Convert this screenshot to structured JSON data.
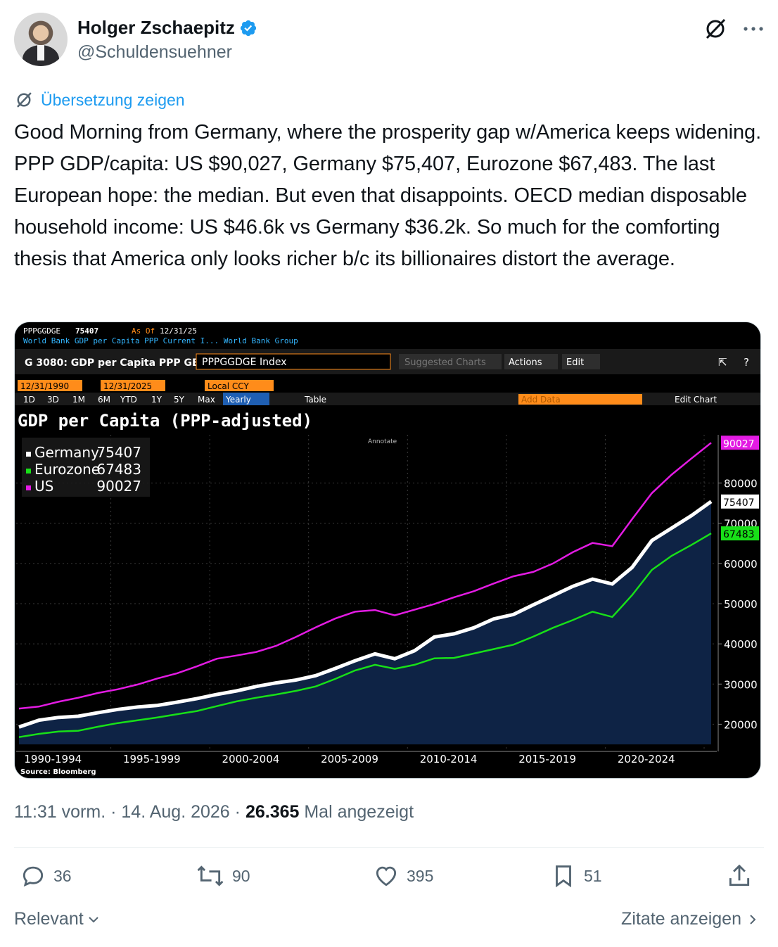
{
  "author": {
    "name": "Holger Zschaepitz",
    "handle": "@Schuldensuehner"
  },
  "translate_label": "Übersetzung zeigen",
  "tweet_text": "Good Morning from Germany, where the prosperity gap w/America keeps widening. PPP GDP/capita: US $90,027, Germany $75,407, Eurozone $67,483. The last European hope: the median. But even that disappoints. OECD median disposable household income: US $46.6k vs Germany $36.2k. So much for the comforting thesis that America only looks richer b/c its billionaires distort the average.",
  "terminal": {
    "ticker": "PPPGGDGE",
    "last_value": "75407",
    "as_of_label": "As Of",
    "as_of_date": "12/31/25",
    "source_line": "World Bank GDP per Capita PPP Current I... World Bank Group",
    "function_title": "G 3080: GDP per Capita PPP GE",
    "index_field": "PPPGGDGE Index",
    "suggested_charts": "Suggested Charts",
    "actions": "Actions",
    "edit": "Edit",
    "start_date": "12/31/1990",
    "end_date": "12/31/2025",
    "currency": "Local CCY",
    "periods": [
      "1D",
      "3D",
      "1M",
      "6M",
      "YTD",
      "1Y",
      "5Y",
      "Max"
    ],
    "frequency": "Yearly",
    "table_label": "Table",
    "add_data": "Add Data",
    "edit_chart": "Edit Chart",
    "annotate": "Annotate",
    "source": "Source: Bloomberg"
  },
  "chart_data": {
    "type": "line",
    "title": "GDP per Capita (PPP-adjusted)",
    "x": [
      1990,
      1991,
      1992,
      1993,
      1994,
      1995,
      1996,
      1997,
      1998,
      1999,
      2000,
      2001,
      2002,
      2003,
      2004,
      2005,
      2006,
      2007,
      2008,
      2009,
      2010,
      2011,
      2012,
      2013,
      2014,
      2015,
      2016,
      2017,
      2018,
      2019,
      2020,
      2021,
      2022,
      2023,
      2024,
      2025
    ],
    "x_tick_labels": [
      "1990-1994",
      "1995-1999",
      "2000-2004",
      "2005-2009",
      "2010-2014",
      "2015-2019",
      "2020-2024"
    ],
    "ylim": [
      15000,
      92000
    ],
    "y_ticks": [
      20000,
      30000,
      40000,
      50000,
      60000,
      70000,
      80000
    ],
    "series": [
      {
        "name": "Germany",
        "last": "75407",
        "color": "#ffffff",
        "values": [
          19300,
          21000,
          21700,
          22000,
          22900,
          23700,
          24300,
          24700,
          25500,
          26400,
          27400,
          28300,
          29400,
          30300,
          31000,
          32100,
          33900,
          35800,
          37500,
          36300,
          38300,
          41700,
          42500,
          44000,
          46200,
          47300,
          49700,
          52000,
          54300,
          56100,
          54900,
          59000,
          65700,
          68800,
          71900,
          75407
        ]
      },
      {
        "name": "Eurozone",
        "last": "67483",
        "color": "#18e018",
        "values": [
          16800,
          17600,
          18200,
          18400,
          19400,
          20300,
          21000,
          21700,
          22500,
          23300,
          24500,
          25700,
          26600,
          27400,
          28300,
          29400,
          31300,
          33400,
          34800,
          33800,
          34800,
          36400,
          36500,
          37600,
          38700,
          39800,
          41800,
          44000,
          45900,
          48000,
          46700,
          52100,
          58400,
          61900,
          64600,
          67483
        ]
      },
      {
        "name": "US",
        "last": "90027",
        "color": "#e31be3",
        "values": [
          23900,
          24400,
          25600,
          26600,
          27800,
          28700,
          29900,
          31400,
          32700,
          34400,
          36300,
          37100,
          38000,
          39500,
          41700,
          44100,
          46300,
          48000,
          48400,
          47100,
          48500,
          49900,
          51600,
          53100,
          55000,
          56800,
          57900,
          60000,
          62800,
          65100,
          64300,
          71000,
          77500,
          82100,
          86100,
          90027
        ]
      }
    ]
  },
  "tweet_meta": {
    "time": "11:31 vorm.",
    "date": "14. Aug. 2026",
    "views": "26.365",
    "views_label": "Mal angezeigt"
  },
  "counts": {
    "replies": "36",
    "reposts": "90",
    "likes": "395",
    "bookmarks": "51"
  },
  "footer": {
    "sort_label": "Relevant",
    "quotes_label": "Zitate anzeigen"
  }
}
